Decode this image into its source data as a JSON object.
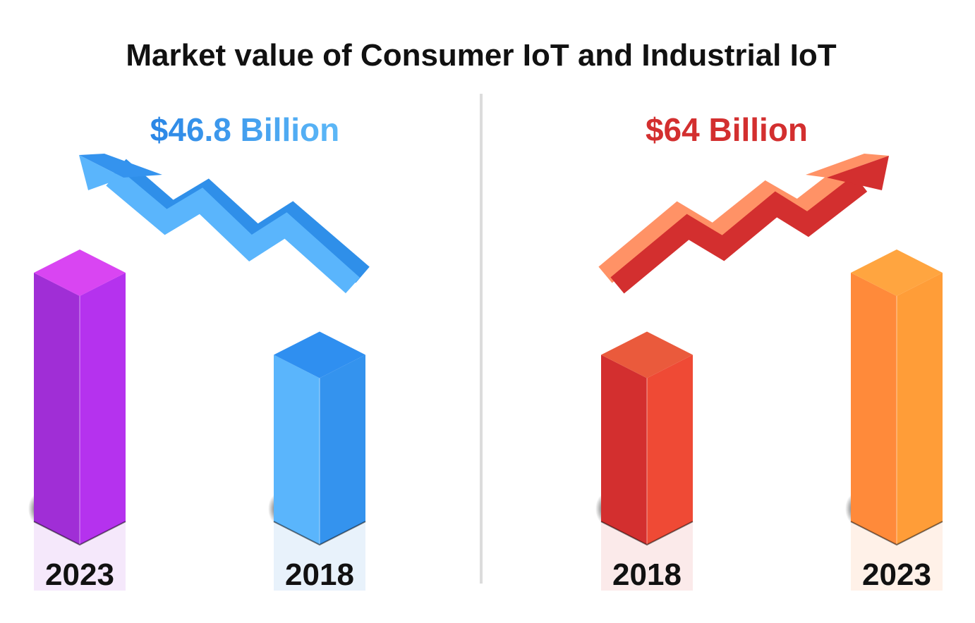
{
  "chart_data": {
    "type": "bar",
    "title": "Market value of Consumer IoT and Industrial IoT",
    "panels": [
      {
        "annotation": "$46.8 Billion",
        "annotation_color": "#2f8fe9",
        "trend": "down",
        "bars": [
          {
            "category": "2023",
            "relative_height": 1.0,
            "colors": {
              "left": "#a02ed6",
              "right": "#b532ee",
              "top": "#d945f2",
              "label_bg": "#f5e8fb"
            }
          },
          {
            "category": "2018",
            "relative_height": 0.67,
            "colors": {
              "left": "#5ab5fc",
              "right": "#3493ee",
              "top": "#2f8ff0",
              "label_bg": "#e8f2fb"
            }
          }
        ]
      },
      {
        "annotation": "$64 Billion",
        "annotation_color": "#d32f2f",
        "trend": "up",
        "bars": [
          {
            "category": "2018",
            "relative_height": 0.67,
            "colors": {
              "left": "#d32f2f",
              "right": "#ef4a35",
              "top": "#ea5a3c",
              "label_bg": "#fbeaea"
            }
          },
          {
            "category": "2023",
            "relative_height": 1.0,
            "colors": {
              "left": "#ff8a3a",
              "right": "#ff9d38",
              "top": "#ffa540",
              "label_bg": "#fff1e8"
            }
          }
        ]
      }
    ],
    "grid": false,
    "legend": "none"
  }
}
